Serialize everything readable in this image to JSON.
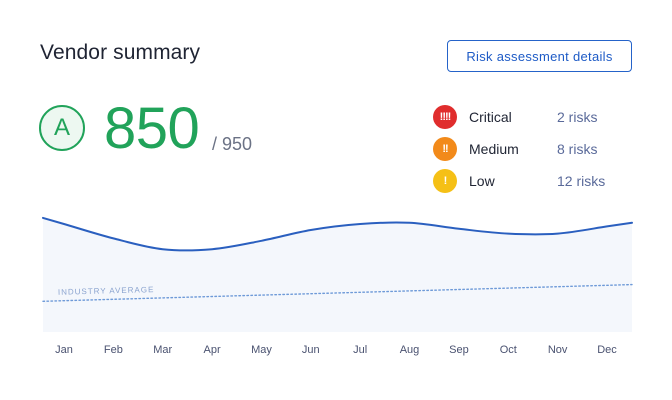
{
  "header": {
    "title": "Vendor summary",
    "details_button_label": "Risk assessment details"
  },
  "score": {
    "grade": "A",
    "value": "850",
    "max": "/ 950"
  },
  "risks": [
    {
      "level": "Critical",
      "count": "2 risks",
      "icon_glyph": "!!!!",
      "color": "#e02d2d",
      "icon": "critical-alert-icon"
    },
    {
      "level": "Medium",
      "count": "8 risks",
      "icon_glyph": "!!",
      "color": "#f28a1a",
      "icon": "medium-alert-icon"
    },
    {
      "level": "Low",
      "count": "12 risks",
      "icon_glyph": "!",
      "color": "#f5c016",
      "icon": "low-alert-icon"
    }
  ],
  "colors": {
    "score_green": "#21a35a",
    "accent_blue": "#2563c9",
    "trend_line": "#2a5fbf",
    "industry_line": "#6e9ad8",
    "area_fill": "#f4f7fc"
  },
  "chart_data": {
    "type": "line",
    "categories": [
      "Jan",
      "Feb",
      "Mar",
      "Apr",
      "May",
      "Jun",
      "Jul",
      "Aug",
      "Sep",
      "Oct",
      "Nov",
      "Dec"
    ],
    "series": [
      {
        "values": [
          850,
          838,
          829,
          829,
          836,
          845,
          850,
          851,
          846,
          842,
          842,
          848
        ]
      },
      {
        "name": "INDUSTRY AVERAGE",
        "values": [
          786,
          787,
          788,
          790,
          791,
          792,
          793,
          795,
          796,
          797,
          798,
          799
        ]
      }
    ],
    "ylim": [
      760,
      870
    ],
    "grid": false,
    "legend": "inline"
  }
}
